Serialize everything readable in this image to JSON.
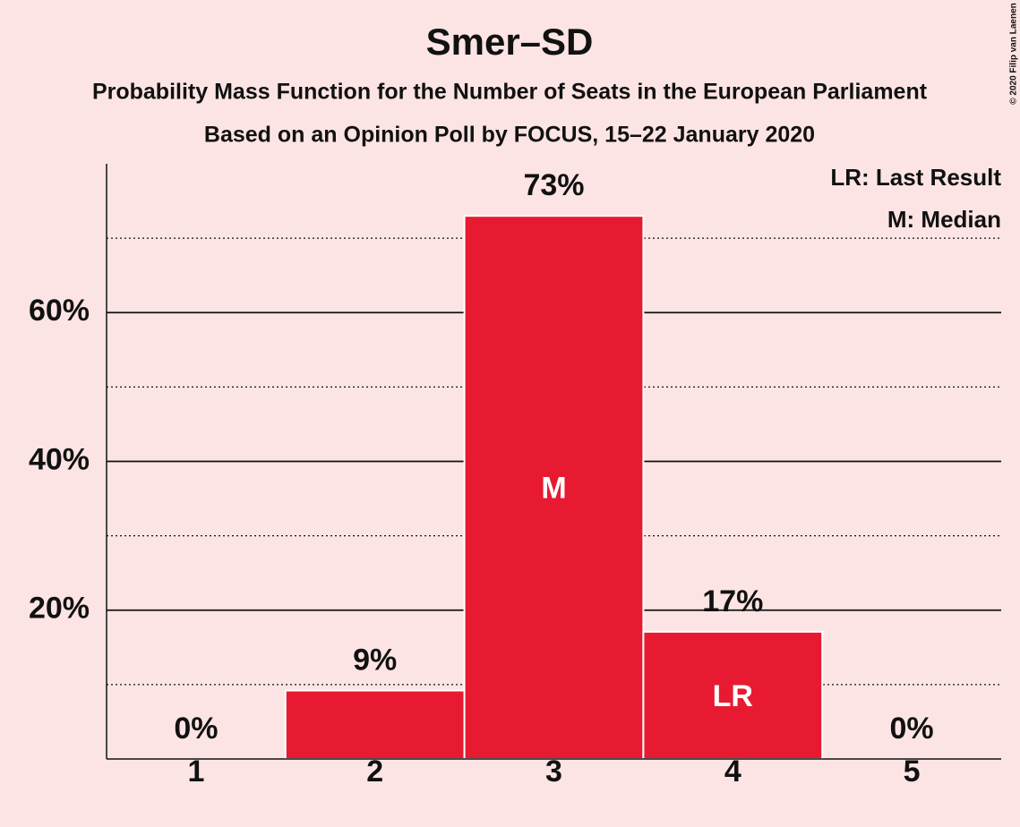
{
  "chart_data": {
    "type": "bar",
    "title": "Smer–SD",
    "subtitle": [
      "Probability Mass Function for the Number of Seats in the European Parliament",
      "Based on an Opinion Poll by FOCUS, 15–22 January 2020"
    ],
    "categories": [
      "1",
      "2",
      "3",
      "4",
      "5"
    ],
    "values": [
      0,
      9.2,
      73,
      17.1,
      0
    ],
    "value_labels": [
      "0%",
      "9%",
      "73%",
      "17%",
      "0%"
    ],
    "bar_labels": [
      null,
      null,
      "M",
      "LR",
      null
    ],
    "color": "#e71a31",
    "ylim": [
      0,
      80
    ],
    "yticks": [
      {
        "value": 20,
        "label": "20%"
      },
      {
        "value": 40,
        "label": "40%"
      },
      {
        "value": 60,
        "label": "60%"
      }
    ],
    "minor_yticks": [
      10,
      30,
      50,
      70
    ],
    "grid": true,
    "legend": [
      "LR: Last Result",
      "M: Median"
    ],
    "copyright": "© 2020 Filip van Laenen"
  }
}
